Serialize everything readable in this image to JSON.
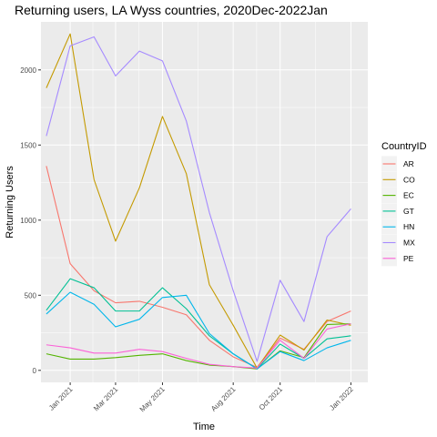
{
  "chart_data": {
    "type": "line",
    "title": "Returning users, LA Wyss countries, 2020Dec-2022Jan",
    "xlabel": "Time",
    "ylabel": "Returning Users",
    "ylim": [
      -80,
      2320
    ],
    "xlim": [
      "2020-11-24",
      "2022-01-23"
    ],
    "grid": true,
    "legend_title": "CountryID",
    "legend_position": "right",
    "y_ticks": [
      0,
      500,
      1000,
      1500,
      2000
    ],
    "x_ticks": [
      {
        "label": "Jan 2021",
        "date": "2021-01-01"
      },
      {
        "label": "Mar 2021",
        "date": "2021-03-01"
      },
      {
        "label": "May 2021",
        "date": "2021-05-01"
      },
      {
        "label": "Aug 2021",
        "date": "2021-08-01"
      },
      {
        "label": "Oct 2021",
        "date": "2021-10-01"
      },
      {
        "label": "Jan 2022",
        "date": "2022-01-01"
      }
    ],
    "x": [
      "2020-12-01",
      "2021-01-01",
      "2021-02-01",
      "2021-03-01",
      "2021-04-01",
      "2021-05-01",
      "2021-06-01",
      "2021-07-01",
      "2021-08-01",
      "2021-09-01",
      "2021-10-01",
      "2021-11-01",
      "2021-12-01",
      "2022-01-01"
    ],
    "series": [
      {
        "name": "AR",
        "color": "#F8766D",
        "values": [
          1360,
          710,
          530,
          450,
          460,
          420,
          370,
          200,
          90,
          20,
          215,
          140,
          325,
          395
        ]
      },
      {
        "name": "CO",
        "color": "#C49A00",
        "values": [
          1880,
          2240,
          1270,
          860,
          1215,
          1690,
          1310,
          570,
          300,
          15,
          235,
          135,
          335,
          300
        ]
      },
      {
        "name": "EC",
        "color": "#53B400",
        "values": [
          110,
          75,
          75,
          85,
          100,
          110,
          65,
          35,
          25,
          10,
          130,
          85,
          305,
          310
        ]
      },
      {
        "name": "GT",
        "color": "#00C094",
        "values": [
          400,
          610,
          550,
          395,
          395,
          550,
          410,
          230,
          110,
          10,
          175,
          80,
          210,
          230
        ]
      },
      {
        "name": "HN",
        "color": "#00B6EB",
        "values": [
          375,
          520,
          440,
          290,
          340,
          485,
          500,
          245,
          110,
          10,
          125,
          65,
          150,
          200
        ]
      },
      {
        "name": "MX",
        "color": "#A58AFF",
        "values": [
          1560,
          2160,
          2220,
          1960,
          2125,
          2060,
          1660,
          1050,
          530,
          60,
          600,
          325,
          890,
          1075
        ]
      },
      {
        "name": "PE",
        "color": "#FB61D7",
        "values": [
          170,
          150,
          115,
          115,
          140,
          125,
          80,
          40,
          25,
          15,
          200,
          80,
          275,
          310
        ]
      }
    ]
  }
}
